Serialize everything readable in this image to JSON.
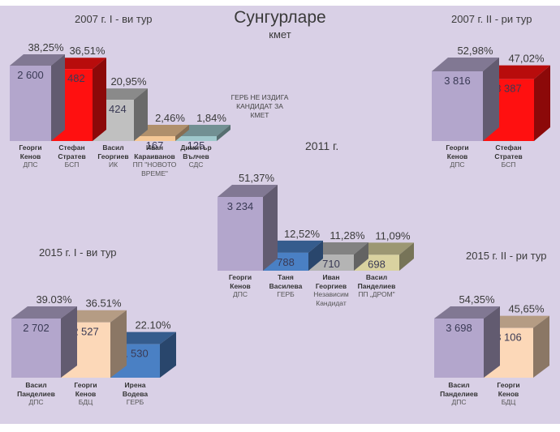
{
  "header": {
    "title": "Сунгурларе",
    "subtitle": "кмет"
  },
  "note_2007": "ГЕРБ НЕ ИЗДИГА КАНДИДАТ ЗА КМЕТ",
  "chart_data": [
    {
      "id": "2007-r1",
      "type": "bar",
      "title": "2007 г. I - ви тур",
      "categories": [
        "Георги Кенов ДПС",
        "Стефан Стратев БСП",
        "Васил Георгиев ИК",
        "Иван Караиванов ПП \"НОВОТО ВРЕМЕ\"",
        "Димитър Вълчев СДС"
      ],
      "bars": [
        {
          "name": "Георги Кенов",
          "party": "ДПС",
          "votes": "2 600",
          "value": 2600,
          "pct": "38,25%",
          "color": "#b3a6cc"
        },
        {
          "name": "Стефан Стратев",
          "party": "БСП",
          "votes": "2 482",
          "value": 2482,
          "pct": "36,51%",
          "color": "#ff1010"
        },
        {
          "name": "Васил Георгиев",
          "party": "ИК",
          "votes": "1 424",
          "value": 1424,
          "pct": "20,95%",
          "color": "#c0c0c0"
        },
        {
          "name": "Иван Караиванов",
          "party": "ПП \"НОВОТО ВРЕМЕ\"",
          "votes": "167",
          "value": 167,
          "pct": "2,46%",
          "color": "#f5c896"
        },
        {
          "name": "Димитър Вълчев",
          "party": "СДС",
          "votes": "125",
          "value": 125,
          "pct": "1,84%",
          "color": "#9fc8cc"
        }
      ]
    },
    {
      "id": "2007-r2",
      "type": "bar",
      "title": "2007 г. II - ри тур",
      "bars": [
        {
          "name": "Георги Кенов",
          "party": "ДПС",
          "votes": "3 816",
          "value": 3816,
          "pct": "52,98%",
          "color": "#b3a6cc"
        },
        {
          "name": "Стефан Стратев",
          "party": "БСП",
          "votes": "3 387",
          "value": 3387,
          "pct": "47,02%",
          "color": "#ff1010"
        }
      ]
    },
    {
      "id": "2011",
      "type": "bar",
      "title": "2011 г.",
      "bars": [
        {
          "name": "Георги Кенов",
          "party": "ДПС",
          "votes": "3 234",
          "value": 3234,
          "pct": "51,37%",
          "color": "#b3a6cc"
        },
        {
          "name": "Таня Василева",
          "party": "ГЕРБ",
          "votes": "788",
          "value": 788,
          "pct": "12,52%",
          "color": "#4a80c4"
        },
        {
          "name": "Иван Георгиев",
          "party": "Независим Кандидат",
          "votes": "710",
          "value": 710,
          "pct": "11,28%",
          "color": "#b4b4b4"
        },
        {
          "name": "Васил Панделиев",
          "party": "ПП „ДРОМ\"",
          "votes": "698",
          "value": 698,
          "pct": "11,09%",
          "color": "#d9d2a0"
        }
      ]
    },
    {
      "id": "2015-r1",
      "type": "bar",
      "title": "2015 г. I - ви тур",
      "bars": [
        {
          "name": "Васил Панделиев",
          "party": "ДПС",
          "votes": "2 702",
          "value": 2702,
          "pct": "39.03%",
          "color": "#b3a6cc"
        },
        {
          "name": "Георги Кенов",
          "party": "БДЦ",
          "votes": "2 527",
          "value": 2527,
          "pct": "36.51%",
          "color": "#fcd8b8"
        },
        {
          "name": "Ирена Водева",
          "party": "ГЕРБ",
          "votes": "1 530",
          "value": 1530,
          "pct": "22.10%",
          "color": "#4a80c4"
        }
      ]
    },
    {
      "id": "2015-r2",
      "type": "bar",
      "title": "2015 г. II - ри тур",
      "bars": [
        {
          "name": "Васил Панделиев",
          "party": "ДПС",
          "votes": "3 698",
          "value": 3698,
          "pct": "54,35%",
          "color": "#b3a6cc"
        },
        {
          "name": "Георги Кенов",
          "party": "БДЦ",
          "votes": "3 106",
          "value": 3106,
          "pct": "45,65%",
          "color": "#fcd8b8"
        }
      ]
    }
  ]
}
